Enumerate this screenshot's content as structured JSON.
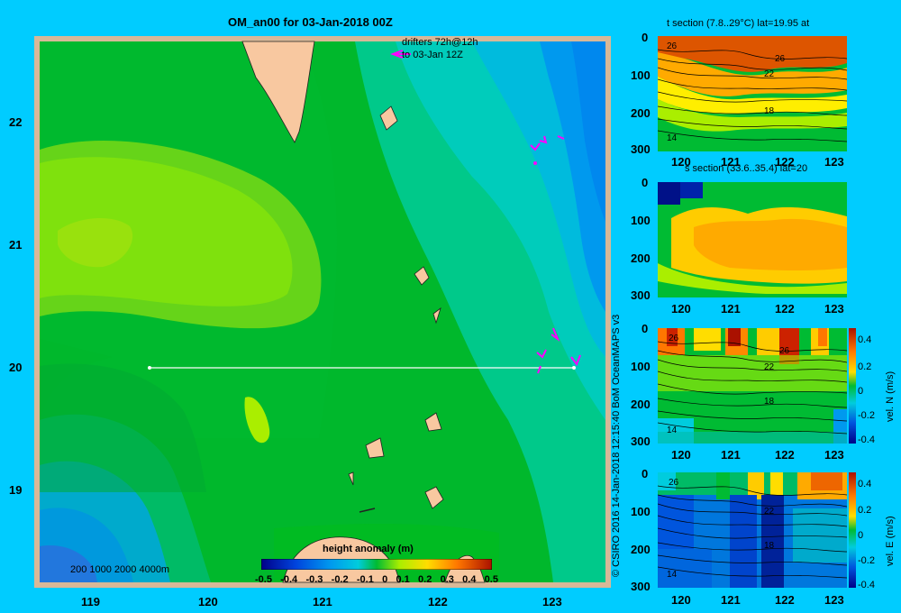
{
  "main_map": {
    "title": "OM_an00 for 03-Jan-2018 00Z",
    "drifters_label_line1": "drifters 72h@12h",
    "drifters_label_line2": "to 03-Jan 12Z",
    "depth_legend": "200  1000  2000  4000m",
    "colorbar_title": "height anomaly (m)",
    "colorbar_ticks": [
      "-0.5",
      "-0.4",
      "-0.3",
      "-0.2",
      "-0.1",
      "0",
      "0.1",
      "0.2",
      "0.3",
      "0.4",
      "0.5"
    ],
    "lat_ticks": [
      "22",
      "21",
      "20",
      "19"
    ],
    "lon_ticks": [
      "119",
      "120",
      "121",
      "122",
      "123"
    ],
    "section_line": {
      "lat": 20,
      "lon_start": 119.5,
      "lon_end": 123.2
    }
  },
  "credit": "© CSIRO 2016   14-Jan-2018 12:15:40 BoM OceanMAPS v3",
  "panels": {
    "t_section": {
      "title": "t section (7.8..29°C) lat=19.95 at",
      "y_ticks": [
        "0",
        "100",
        "200",
        "300"
      ],
      "x_ticks": [
        "120",
        "121",
        "122",
        "123"
      ],
      "contour_labels": [
        "26",
        "26",
        "22",
        "18",
        "14"
      ]
    },
    "s_section": {
      "title": "s section (33.6..35.4) lat=20",
      "y_ticks": [
        "0",
        "100",
        "200",
        "300"
      ],
      "x_ticks": [
        "120",
        "121",
        "122",
        "123"
      ]
    },
    "vn_section": {
      "y_ticks": [
        "0",
        "100",
        "200",
        "300"
      ],
      "x_ticks": [
        "120",
        "121",
        "122",
        "123"
      ],
      "contour_labels": [
        "26",
        "26",
        "22",
        "18",
        "14"
      ],
      "colorbar_label": "vel. N  (m/s)",
      "colorbar_ticks": [
        "0.4",
        "0.2",
        "0",
        "-0.2",
        "-0.4"
      ]
    },
    "ve_section": {
      "y_ticks": [
        "0",
        "100",
        "200",
        "300"
      ],
      "x_ticks": [
        "120",
        "121",
        "122",
        "123"
      ],
      "contour_labels": [
        "26",
        "22",
        "18",
        "14"
      ],
      "colorbar_label": "vel. E  (m/s)",
      "colorbar_ticks": [
        "0.4",
        "0.2",
        "0",
        "-0.2",
        "-0.4"
      ]
    }
  }
}
